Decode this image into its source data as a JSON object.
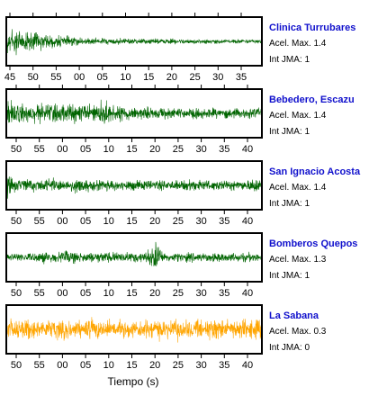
{
  "chart_data": {
    "type": "line",
    "xlabel": "Tiempo (s)",
    "tick_labels": [
      "45",
      "50",
      "55",
      "00",
      "05",
      "10",
      "15",
      "20",
      "25",
      "30",
      "35",
      "40"
    ],
    "colors": {
      "name": "#1010cc",
      "frame": "#000000"
    },
    "panels": [
      {
        "station": "Clinica Turrubares",
        "acel_label": "Acel. Max. 1.4",
        "jma_label": "Int JMA: 1",
        "color": "#006400",
        "first_tick": "45",
        "tick_sides": "both",
        "amplitude": [
          0.85,
          0.8,
          0.7,
          0.55,
          0.5,
          0.45,
          0.4,
          0.35,
          0.32,
          0.28,
          0.24,
          0.22,
          0.2,
          0.19,
          0.18,
          0.18,
          0.17,
          0.17,
          0.16,
          0.16,
          0.16,
          0.15,
          0.15,
          0.15,
          0.14,
          0.14,
          0.14,
          0.14,
          0.13,
          0.13,
          0.13,
          0.13,
          0.13,
          0.12,
          0.12,
          0.12,
          0.12,
          0.12,
          0.12,
          0.11
        ]
      },
      {
        "station": "Bebedero, Escazu",
        "acel_label": "Acel. Max. 1.4",
        "jma_label": "Int JMA: 1",
        "color": "#006400",
        "first_tick": "50",
        "tick_sides": "both",
        "amplitude": [
          0.85,
          0.55,
          0.5,
          0.55,
          0.5,
          0.55,
          0.6,
          0.5,
          0.45,
          0.5,
          0.55,
          0.5,
          0.45,
          0.5,
          0.55,
          0.85,
          0.5,
          0.45,
          0.4,
          0.4,
          0.35,
          0.35,
          0.35,
          0.3,
          0.35,
          0.3,
          0.3,
          0.3,
          0.3,
          0.3,
          0.28,
          0.3,
          0.28,
          0.3,
          0.28,
          0.28,
          0.28,
          0.28,
          0.3,
          0.3
        ]
      },
      {
        "station": "San Ignacio Acosta",
        "acel_label": "Acel. Max. 1.4",
        "jma_label": "Int JMA: 1",
        "color": "#006400",
        "first_tick": "50",
        "tick_sides": "bottom",
        "amplitude": [
          0.75,
          0.35,
          0.35,
          0.38,
          0.35,
          0.35,
          0.38,
          0.4,
          0.35,
          0.35,
          0.35,
          0.5,
          0.35,
          0.3,
          0.3,
          0.3,
          0.3,
          0.3,
          0.3,
          0.3,
          0.28,
          0.28,
          0.28,
          0.28,
          0.28,
          0.28,
          0.28,
          0.28,
          0.4,
          0.28,
          0.28,
          0.28,
          0.28,
          0.28,
          0.28,
          0.28,
          0.28,
          0.28,
          0.5,
          0.3
        ]
      },
      {
        "station": "Bomberos Quepos",
        "acel_label": "Acel. Max. 1.3",
        "jma_label": "Int JMA: 1",
        "color": "#006400",
        "first_tick": "50",
        "tick_sides": "bottom",
        "amplitude": [
          0.25,
          0.22,
          0.25,
          0.22,
          0.25,
          0.3,
          0.35,
          0.3,
          0.3,
          0.45,
          0.3,
          0.3,
          0.3,
          0.3,
          0.3,
          0.3,
          0.3,
          0.3,
          0.3,
          0.3,
          0.3,
          0.3,
          0.5,
          0.9,
          0.3,
          0.25,
          0.25,
          0.25,
          0.25,
          0.25,
          0.25,
          0.25,
          0.25,
          0.25,
          0.25,
          0.25,
          0.25,
          0.25,
          0.25,
          0.25
        ]
      },
      {
        "station": "La Sabana",
        "acel_label": "Acel. Max. 0.3",
        "jma_label": "Int JMA: 0",
        "color": "#ffa500",
        "first_tick": "50",
        "tick_sides": "bottom",
        "amplitude": [
          0.55,
          0.55,
          0.5,
          0.6,
          0.55,
          0.5,
          0.55,
          0.6,
          0.5,
          0.55,
          0.55,
          0.5,
          0.55,
          0.6,
          0.55,
          0.5,
          0.55,
          0.5,
          0.55,
          0.55,
          0.5,
          0.55,
          0.6,
          0.55,
          0.5,
          0.55,
          0.55,
          0.6,
          0.55,
          0.5,
          0.55,
          0.55,
          0.75,
          0.55,
          0.5,
          0.55,
          0.6,
          0.55,
          0.55,
          0.5
        ]
      }
    ]
  }
}
